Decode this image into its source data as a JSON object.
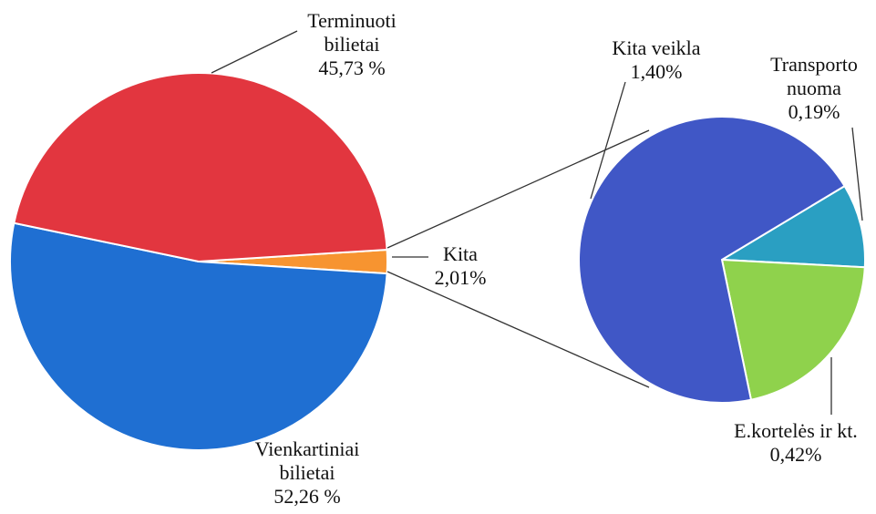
{
  "chart_data": [
    {
      "type": "pie",
      "categories": [
        "Terminuoti bilietai",
        "Vienkartiniai bilietai",
        "Kita"
      ],
      "values": [
        45.73,
        52.26,
        2.01
      ],
      "value_labels": [
        "45,73 %",
        "52,26 %",
        "2,01%"
      ],
      "colors": [
        "#e2363f",
        "#1f6fd2",
        "#f79430"
      ]
    },
    {
      "type": "pie",
      "categories": [
        "Kita veikla",
        "E.kortelės ir kt.",
        "Transporto nuoma"
      ],
      "values": [
        1.4,
        0.42,
        0.19
      ],
      "value_labels": [
        "1,40%",
        "0,42%",
        "0,19%"
      ],
      "colors": [
        "#4057c6",
        "#8fd24c",
        "#2a9fc2"
      ]
    }
  ]
}
